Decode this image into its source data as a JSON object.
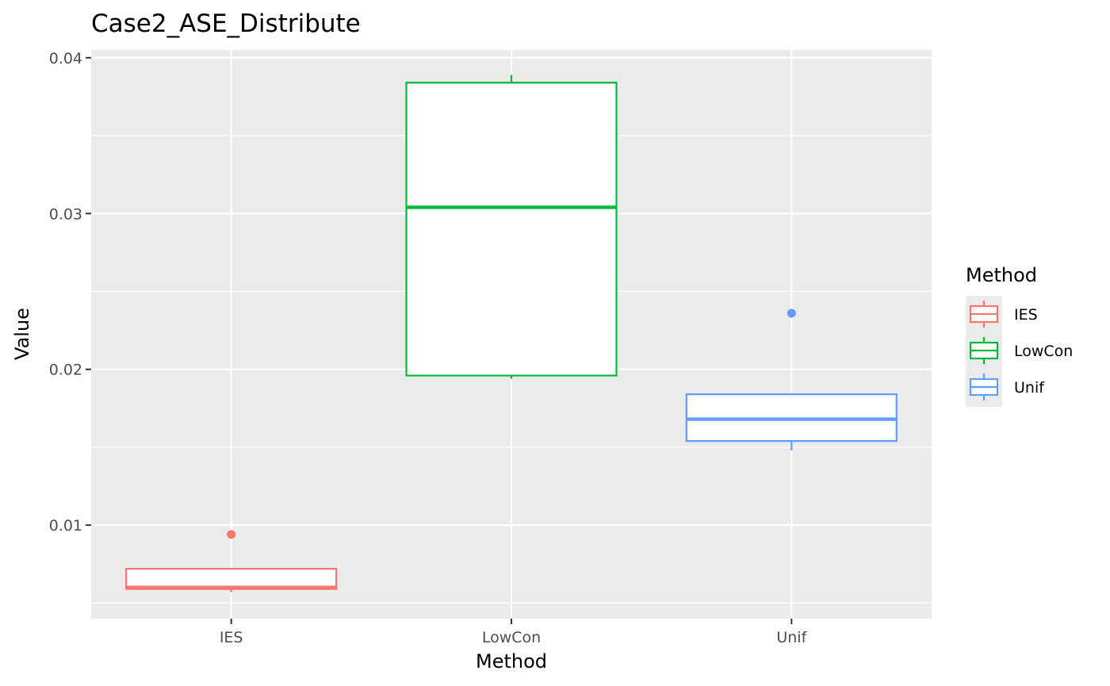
{
  "chart_data": {
    "type": "boxplot",
    "title": "Case2_ASE_Distribute",
    "xlabel": "Method",
    "ylabel": "Value",
    "ylim": [
      0.004,
      0.0405
    ],
    "yticks": [
      {
        "value": 0.01,
        "label": "0.01"
      },
      {
        "value": 0.02,
        "label": "0.02"
      },
      {
        "value": 0.03,
        "label": "0.03"
      },
      {
        "value": 0.04,
        "label": "0.04"
      }
    ],
    "categories": [
      "IES",
      "LowCon",
      "Unif"
    ],
    "legend": {
      "title": "Method",
      "position": "right"
    },
    "series": [
      {
        "name": "IES",
        "color": "#F8766D",
        "whisker_low": 0.0057,
        "q1": 0.0059,
        "median": 0.006,
        "q3": 0.0072,
        "whisker_high": 0.0072,
        "outliers": [
          0.0094
        ]
      },
      {
        "name": "LowCon",
        "color": "#00BA38",
        "whisker_low": 0.0194,
        "q1": 0.0196,
        "median": 0.0304,
        "q3": 0.0384,
        "whisker_high": 0.0389,
        "outliers": []
      },
      {
        "name": "Unif",
        "color": "#619CFF",
        "whisker_low": 0.0148,
        "q1": 0.0154,
        "median": 0.0168,
        "q3": 0.0184,
        "whisker_high": 0.0184,
        "outliers": [
          0.0236
        ]
      }
    ]
  }
}
